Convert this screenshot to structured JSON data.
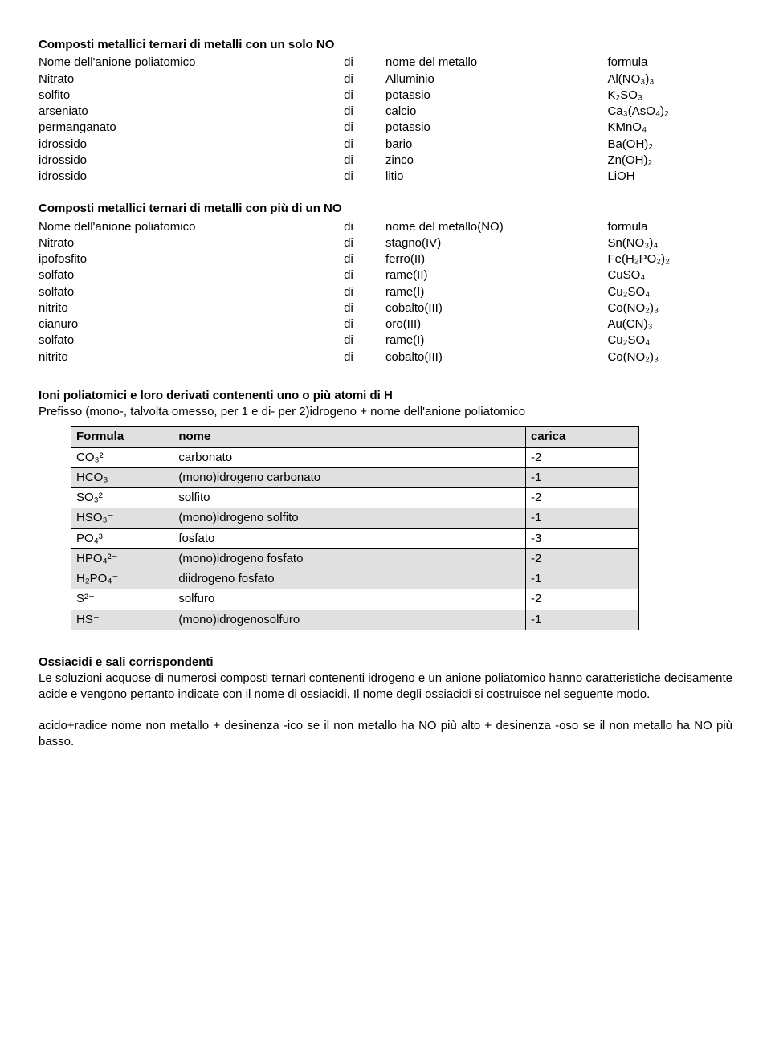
{
  "section1": {
    "title": "Composti metallici ternari di metalli con un solo NO",
    "header": {
      "c1": "Nome dell'anione poliatomico",
      "cdi": "di",
      "c2": "nome del metallo",
      "c3": "formula"
    },
    "rows": [
      {
        "c1": "Nitrato",
        "cdi": "di",
        "c2": "Alluminio",
        "c3": "Al(NO₃)₃"
      },
      {
        "c1": "solfito",
        "cdi": "di",
        "c2": "potassio",
        "c3": "K₂SO₃"
      },
      {
        "c1": "arseniato",
        "cdi": "di",
        "c2": "calcio",
        "c3": "Ca₃(AsO₄)₂"
      },
      {
        "c1": "permanganato",
        "cdi": "di",
        "c2": "potassio",
        "c3": "KMnO₄"
      },
      {
        "c1": "idrossido",
        "cdi": "di",
        "c2": "bario",
        "c3": "Ba(OH)₂"
      },
      {
        "c1": "idrossido",
        "cdi": "di",
        "c2": "zinco",
        "c3": "Zn(OH)₂"
      },
      {
        "c1": "idrossido",
        "cdi": "di",
        "c2": "litio",
        "c3": "LiOH"
      }
    ]
  },
  "section2": {
    "title": "Composti metallici ternari di metalli con più di un NO",
    "header": {
      "c1": "Nome dell'anione poliatomico",
      "cdi": "di",
      "c2": "nome del metallo(NO)",
      "c3": "formula"
    },
    "rows": [
      {
        "c1": "Nitrato",
        "cdi": "di",
        "c2": "stagno(IV)",
        "c3": "Sn(NO₃)₄"
      },
      {
        "c1": "ipofosfito",
        "cdi": "di",
        "c2": "ferro(II)",
        "c3": "Fe(H₂PO₂)₂"
      },
      {
        "c1": "solfato",
        "cdi": "di",
        "c2": "rame(II)",
        "c3": "CuSO₄"
      },
      {
        "c1": "solfato",
        "cdi": "di",
        "c2": "rame(I)",
        "c3": "Cu₂SO₄"
      },
      {
        "c1": "nitrito",
        "cdi": "di",
        "c2": "cobalto(III)",
        "c3": "Co(NO₂)₃"
      },
      {
        "c1": "cianuro",
        "cdi": "di",
        "c2": "oro(III)",
        "c3": "Au(CN)₃"
      },
      {
        "c1": "solfato",
        "cdi": "di",
        "c2": "rame(I)",
        "c3": "Cu₂SO₄"
      },
      {
        "c1": "nitrito",
        "cdi": "di",
        "c2": "cobalto(III)",
        "c3": "Co(NO₂)₃"
      }
    ]
  },
  "section3": {
    "title": "Ioni poliatomici e loro derivati contenenti uno o più atomi di H",
    "sub": "Prefisso (mono-, talvolta omesso, per 1 e di- per 2)idrogeno + nome dell'anione poliatomico",
    "table": {
      "columns": [
        "Formula",
        "nome",
        "carica"
      ],
      "rows": [
        {
          "f": "CO₃²⁻",
          "n": "carbonato",
          "c": "-2",
          "shaded": false
        },
        {
          "f": "HCO₃⁻",
          "n": "(mono)idrogeno carbonato",
          "c": "-1",
          "shaded": true
        },
        {
          "f": "SO₃²⁻",
          "n": "solfito",
          "c": "-2",
          "shaded": false
        },
        {
          "f": "HSO₃⁻",
          "n": "(mono)idrogeno solfito",
          "c": "-1",
          "shaded": true
        },
        {
          "f": "PO₄³⁻",
          "n": "fosfato",
          "c": "-3",
          "shaded": false
        },
        {
          "f": "HPO₄²⁻",
          "n": "(mono)idrogeno fosfato",
          "c": "-2",
          "shaded": true
        },
        {
          "f": "H₂PO₄⁻",
          "n": "diidrogeno fosfato",
          "c": "-1",
          "shaded": true
        },
        {
          "f": "S²⁻",
          "n": "solfuro",
          "c": "-2",
          "shaded": false
        },
        {
          "f": "HS⁻",
          "n": "(mono)idrogenosolfuro",
          "c": "-1",
          "shaded": true
        }
      ]
    }
  },
  "section4": {
    "title": "Ossiacidi e sali corrispondenti",
    "body": "Le soluzioni acquose di numerosi composti ternari contenenti idrogeno e un anione poliatomico hanno caratteristiche decisamente acide e vengono pertanto indicate con il nome di ossiacidi. Il nome degli ossiacidi si costruisce nel seguente modo.",
    "body2": "acido+radice nome non metallo + desinenza -ico se il non metallo ha NO più alto + desinenza -oso se il non metallo ha NO più basso."
  }
}
